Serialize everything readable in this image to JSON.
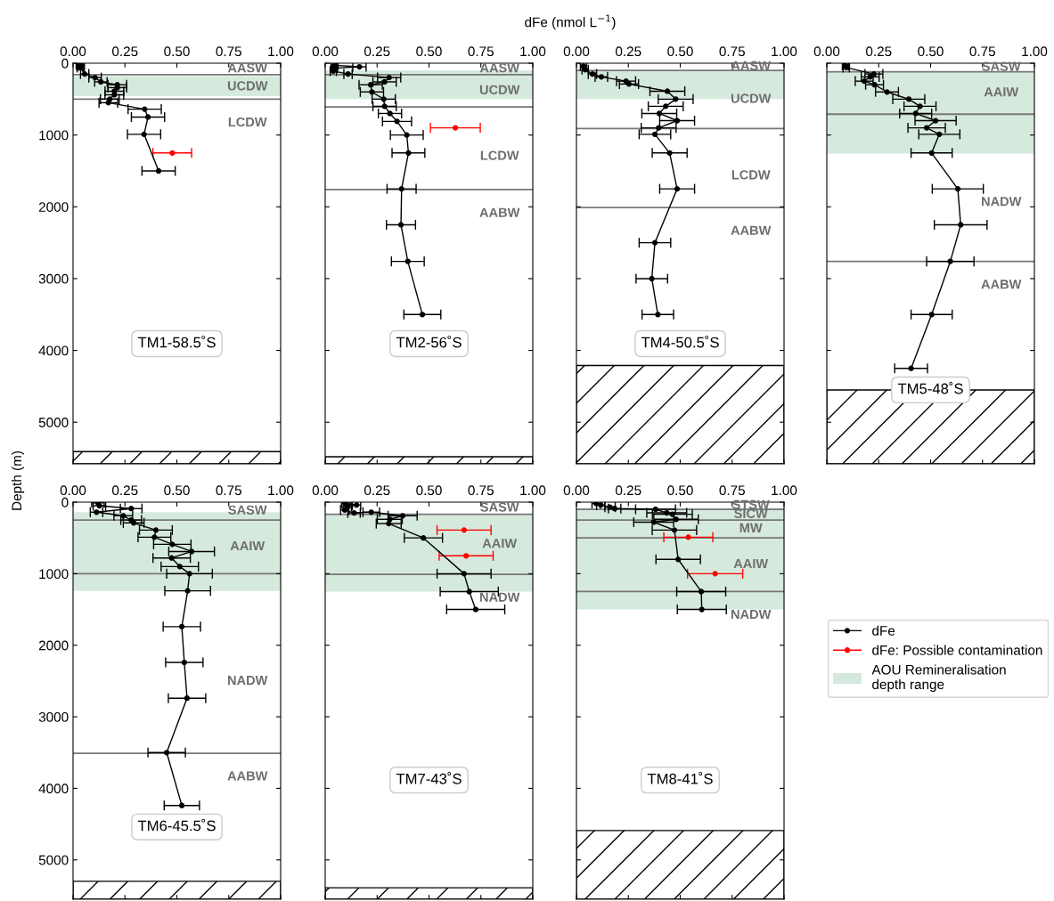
{
  "chart_data": [
    {
      "type": "line",
      "title": "TM1-58.5˚S",
      "marker": "circle",
      "grid": false,
      "xlim": [
        0,
        1
      ],
      "xticks": [
        {
          "value": 0,
          "label": "0.00"
        },
        {
          "value": 0.25,
          "label": "0.25"
        },
        {
          "value": 0.5,
          "label": "0.50"
        },
        {
          "value": 0.75,
          "label": "0.75"
        },
        {
          "value": 1,
          "label": "1.00"
        }
      ],
      "ylim": [
        5580,
        0
      ],
      "yticks": [
        0,
        1000,
        2000,
        3000,
        4000,
        5000
      ],
      "series": [
        {
          "type": "line",
          "color": "#000000",
          "x": [
            0.03,
            0.04,
            0.034,
            0.056,
            0.106,
            0.134,
            0.213,
            0.213,
            0.199,
            0.199,
            0.177,
            0.17,
            0.345,
            0.361,
            0.342,
            0.412
          ],
          "values": [
            20,
            40,
            60,
            150,
            200,
            260,
            300,
            340,
            390,
            440,
            500,
            550,
            640,
            750,
            990,
            1500
          ],
          "xerrors": [
            0.015,
            0.015,
            0.015,
            0.02,
            0.03,
            0.03,
            0.045,
            0.045,
            0.045,
            0.045,
            0.045,
            0.045,
            0.08,
            0.08,
            0.08,
            0.08
          ]
        },
        {
          "type": "scatter",
          "color": "#ff0000",
          "x": [
            0.478
          ],
          "values": [
            1250
          ],
          "xerrors": [
            0.093
          ]
        }
      ],
      "ref_lines": [
        {
          "axis": "y",
          "value": 160,
          "color": "#777777"
        },
        {
          "axis": "y",
          "value": 500,
          "color": "#777777"
        }
      ],
      "bands": [
        {
          "axis": "y",
          "from": 180,
          "to": 460,
          "color": "#96c8ab"
        },
        {
          "axis": "y",
          "from": 5410,
          "to": 5580
        }
      ],
      "annotations": [
        "AASW",
        "UCDW",
        "LCDW",
        {
          "text": "dFe (nmol L$^{−1}$)"
        },
        {
          "text": "Depth (m)"
        }
      ]
    },
    {
      "type": "line",
      "title": "TM2-56˚S",
      "marker": "circle",
      "grid": false,
      "tick_labels": "x",
      "xlim": [
        0,
        1
      ],
      "xticks": [
        {
          "value": 0,
          "label": "0.00"
        },
        {
          "value": 0.25,
          "label": "0.25"
        },
        {
          "value": 0.5,
          "label": "0.50"
        },
        {
          "value": 0.75,
          "label": "0.75"
        },
        {
          "value": 1,
          "label": "1.00"
        }
      ],
      "ylim": [
        5580,
        0
      ],
      "yticks": [
        0,
        1000,
        2000,
        3000,
        4000,
        5000
      ],
      "series": [
        {
          "type": "line",
          "color": "#000000",
          "x": [
            0.047,
            0.165,
            0.043,
            0.039,
            0.11,
            0.308,
            0.286,
            0.219,
            0.225,
            0.282,
            0.286,
            0.312,
            0.346,
            0.393,
            0.401,
            0.368,
            0.365,
            0.398,
            0.468
          ],
          "values": [
            30,
            50,
            70,
            110,
            150,
            200,
            260,
            300,
            400,
            500,
            600,
            700,
            810,
            1000,
            1250,
            1750,
            2250,
            2760,
            3500
          ],
          "xerrors": [
            0.015,
            0.032,
            0.015,
            0.015,
            0.02,
            0.056,
            0.056,
            0.056,
            0.056,
            0.056,
            0.056,
            0.056,
            0.07,
            0.079,
            0.079,
            0.07,
            0.07,
            0.079,
            0.089
          ]
        },
        {
          "type": "scatter",
          "color": "#ff0000",
          "x": [
            0.627
          ],
          "values": [
            900
          ],
          "xerrors": [
            0.12
          ]
        }
      ],
      "ref_lines": [
        {
          "axis": "y",
          "value": 160,
          "color": "#777777"
        },
        {
          "axis": "y",
          "value": 610,
          "color": "#777777"
        },
        {
          "axis": "y",
          "value": 1760,
          "color": "#777777"
        }
      ],
      "bands": [
        {
          "axis": "y",
          "from": 100,
          "to": 500,
          "color": "#96c8ab"
        },
        {
          "axis": "y",
          "from": 5480,
          "to": 5580
        }
      ],
      "annotations": [
        "AASW",
        "UCDW",
        "LCDW",
        "AABW"
      ]
    },
    {
      "type": "line",
      "title": "TM4-50.5˚S",
      "marker": "circle",
      "grid": false,
      "tick_labels": "x",
      "xlim": [
        0,
        1
      ],
      "xticks": [
        {
          "value": 0,
          "label": "0.00"
        },
        {
          "value": 0.25,
          "label": "0.25"
        },
        {
          "value": 0.5,
          "label": "0.50"
        },
        {
          "value": 0.75,
          "label": "0.75"
        },
        {
          "value": 1,
          "label": "1.00"
        }
      ],
      "ylim": [
        5580,
        0
      ],
      "yticks": [
        0,
        1000,
        2000,
        3000,
        4000,
        5000
      ],
      "series": [
        {
          "type": "line",
          "color": "#000000",
          "x": [
            0.034,
            0.042,
            0.077,
            0.12,
            0.239,
            0.253,
            0.438,
            0.478,
            0.43,
            0.399,
            0.485,
            0.396,
            0.378,
            0.449,
            0.485,
            0.378,
            0.363,
            0.392
          ],
          "values": [
            40,
            90,
            150,
            190,
            250,
            290,
            390,
            500,
            600,
            700,
            800,
            900,
            990,
            1250,
            1750,
            2500,
            3000,
            3500
          ],
          "xerrors": [
            0.015,
            0.015,
            0.02,
            0.03,
            0.046,
            0.046,
            0.084,
            0.084,
            0.084,
            0.084,
            0.084,
            0.084,
            0.076,
            0.084,
            0.084,
            0.076,
            0.076,
            0.076
          ]
        }
      ],
      "ref_lines": [
        {
          "axis": "y",
          "value": 100,
          "color": "#777777"
        },
        {
          "axis": "y",
          "value": 910,
          "color": "#777777"
        },
        {
          "axis": "y",
          "value": 2010,
          "color": "#777777"
        }
      ],
      "bands": [
        {
          "axis": "y",
          "from": 100,
          "to": 500,
          "color": "#96c8ab"
        },
        {
          "axis": "y",
          "from": 4210,
          "to": 5580
        }
      ],
      "annotations": [
        "AASW",
        "UCDW",
        "LCDW",
        "AABW"
      ]
    },
    {
      "type": "line",
      "title": "TM5-48˚S",
      "marker": "circle",
      "grid": false,
      "tick_labels": "x",
      "xlim": [
        0,
        1
      ],
      "xticks": [
        {
          "value": 0,
          "label": "0.00"
        },
        {
          "value": 0.25,
          "label": "0.25"
        },
        {
          "value": 0.5,
          "label": "0.50"
        },
        {
          "value": 0.75,
          "label": "0.75"
        },
        {
          "value": 1,
          "label": "1.00"
        }
      ],
      "ylim": [
        5580,
        0
      ],
      "yticks": [
        0,
        1000,
        2000,
        3000,
        4000,
        5000
      ],
      "series": [
        {
          "type": "line",
          "color": "#000000",
          "x": [
            0.09,
            0.094,
            0.227,
            0.209,
            0.18,
            0.23,
            0.29,
            0.395,
            0.449,
            0.428,
            0.524,
            0.481,
            0.542,
            0.505,
            0.631,
            0.645,
            0.595,
            0.505,
            0.406
          ],
          "values": [
            30,
            60,
            150,
            190,
            250,
            300,
            400,
            500,
            600,
            700,
            800,
            900,
            990,
            1250,
            1750,
            2250,
            2760,
            3500,
            4250
          ],
          "xerrors": [
            0.015,
            0.015,
            0.043,
            0.043,
            0.043,
            0.043,
            0.055,
            0.077,
            0.077,
            0.077,
            0.099,
            0.09,
            0.099,
            0.099,
            0.123,
            0.127,
            0.114,
            0.099,
            0.079
          ]
        }
      ],
      "ref_lines": [
        {
          "axis": "y",
          "value": 120,
          "color": "#777777"
        },
        {
          "axis": "y",
          "value": 710,
          "color": "#777777"
        },
        {
          "axis": "y",
          "value": 2760,
          "color": "#777777"
        }
      ],
      "bands": [
        {
          "axis": "y",
          "from": 120,
          "to": 1260,
          "color": "#96c8ab"
        },
        {
          "axis": "y",
          "from": 4550,
          "to": 5580
        }
      ],
      "annotations": [
        "SASW",
        "AAIW",
        "NADW",
        "AABW"
      ]
    },
    {
      "type": "line",
      "title": "TM6-45.5˚S",
      "marker": "circle",
      "grid": false,
      "xlim": [
        0,
        1
      ],
      "xticks": [
        {
          "value": 0,
          "label": "0.00"
        },
        {
          "value": 0.25,
          "label": "0.25"
        },
        {
          "value": 0.5,
          "label": "0.50"
        },
        {
          "value": 0.75,
          "label": "0.75"
        },
        {
          "value": 1,
          "label": "1.00"
        }
      ],
      "ylim": [
        5550,
        0
      ],
      "yticks": [
        0,
        1000,
        2000,
        3000,
        4000,
        5000
      ],
      "series": [
        {
          "type": "line",
          "color": "#000000",
          "x": [
            0.12,
            0.127,
            0.28,
            0.113,
            0.242,
            0.28,
            0.292,
            0.399,
            0.392,
            0.478,
            0.571,
            0.475,
            0.514,
            0.561,
            0.552,
            0.524,
            0.536,
            0.549,
            0.451,
            0.524
          ],
          "values": [
            10,
            50,
            90,
            140,
            190,
            250,
            290,
            390,
            490,
            590,
            690,
            780,
            900,
            1000,
            1240,
            1740,
            2240,
            2740,
            3500,
            4240
          ],
          "xerrors": [
            0.03,
            0.03,
            0.052,
            0.03,
            0.045,
            0.05,
            0.05,
            0.079,
            0.079,
            0.09,
            0.11,
            0.09,
            0.09,
            0.11,
            0.11,
            0.09,
            0.09,
            0.09,
            0.09,
            0.085
          ]
        }
      ],
      "ref_lines": [
        {
          "axis": "y",
          "value": 250,
          "color": "#777777"
        },
        {
          "axis": "y",
          "value": 1000,
          "color": "#777777"
        },
        {
          "axis": "y",
          "value": 3510,
          "color": "#777777"
        }
      ],
      "bands": [
        {
          "axis": "y",
          "from": 140,
          "to": 1240,
          "color": "#96c8ab"
        },
        {
          "axis": "y",
          "from": 5300,
          "to": 5550
        }
      ],
      "annotations": [
        "SASW",
        "AAIW",
        "NADW",
        "AABW"
      ]
    },
    {
      "type": "line",
      "title": "TM7-43˚S",
      "marker": "circle",
      "grid": false,
      "tick_labels": "x",
      "xlim": [
        0,
        1
      ],
      "xticks": [
        {
          "value": 0,
          "label": "0.00"
        },
        {
          "value": 0.25,
          "label": "0.25"
        },
        {
          "value": 0.5,
          "label": "0.50"
        },
        {
          "value": 0.75,
          "label": "0.75"
        },
        {
          "value": 1,
          "label": "1.00"
        }
      ],
      "ylim": [
        5550,
        0
      ],
      "yticks": [
        0,
        1000,
        2000,
        3000,
        4000,
        5000
      ],
      "series": [
        {
          "type": "line",
          "color": "#000000",
          "x": [
            0.099,
            0.151,
            0.106,
            0.094,
            0.139,
            0.222,
            0.373,
            0.311,
            0.306,
            0.473,
            0.669,
            0.694,
            0.725
          ],
          "values": [
            20,
            40,
            60,
            110,
            150,
            140,
            190,
            240,
            300,
            500,
            1000,
            1250,
            1500
          ],
          "xerrors": [
            0.02,
            0.02,
            0.02,
            0.02,
            0.03,
            0.04,
            0.07,
            0.06,
            0.06,
            0.092,
            0.13,
            0.14,
            0.14
          ]
        },
        {
          "type": "scatter",
          "color": "#ff0000",
          "x": [
            0.669,
            0.679
          ],
          "values": [
            390,
            750
          ],
          "xerrors": [
            0.13,
            0.13
          ]
        }
      ],
      "ref_lines": [
        {
          "axis": "y",
          "value": 170,
          "color": "#777777"
        },
        {
          "axis": "y",
          "value": 1010,
          "color": "#777777"
        }
      ],
      "bands": [
        {
          "axis": "y",
          "from": 170,
          "to": 1250,
          "color": "#96c8ab"
        },
        {
          "axis": "y",
          "from": 5390,
          "to": 5550
        }
      ],
      "annotations": [
        "SASW",
        "AAIW",
        "NADW"
      ]
    },
    {
      "type": "line",
      "title": "TM8-41˚S",
      "marker": "circle",
      "grid": false,
      "tick_labels": "x",
      "legend": "right",
      "xlim": [
        0,
        1
      ],
      "xticks": [
        {
          "value": 0,
          "label": "0.00"
        },
        {
          "value": 0.25,
          "label": "0.25"
        },
        {
          "value": 0.5,
          "label": "0.50"
        },
        {
          "value": 0.75,
          "label": "0.75"
        },
        {
          "value": 1,
          "label": "1.00"
        }
      ],
      "ylim": [
        5550,
        0
      ],
      "yticks": [
        0,
        1000,
        2000,
        3000,
        4000,
        5000
      ],
      "series": [
        {
          "type": "line",
          "name": "dFe",
          "color": "#000000",
          "x": [
            0.095,
            0.117,
            0.162,
            0.184,
            0.381,
            0.435,
            0.462,
            0.48,
            0.372,
            0.472,
            0.49,
            0.601,
            0.604
          ],
          "values": [
            20,
            40,
            70,
            90,
            100,
            150,
            170,
            240,
            280,
            390,
            800,
            1250,
            1500
          ],
          "xerrors": [
            0.02,
            0.02,
            0.025,
            0.03,
            0.096,
            0.096,
            0.096,
            0.107,
            0.096,
            0.107,
            0.107,
            0.118,
            0.118
          ]
        },
        {
          "type": "scatter",
          "name": "dFe: Possible contamination",
          "color": "#ff0000",
          "x": [
            0.539,
            0.668
          ],
          "values": [
            490,
            1000
          ],
          "xerrors": [
            0.118,
            0.133
          ]
        }
      ],
      "ref_lines": [
        {
          "axis": "y",
          "value": 100,
          "color": "#777777"
        },
        {
          "axis": "y",
          "value": 250,
          "color": "#777777"
        },
        {
          "axis": "y",
          "value": 500,
          "color": "#777777"
        },
        {
          "axis": "y",
          "value": 1250,
          "color": "#777777"
        }
      ],
      "bands": [
        {
          "axis": "y",
          "from": 80,
          "to": 1500,
          "color": "#96c8ab",
          "label": "AOU Remineralisation depth range"
        },
        {
          "axis": "y",
          "from": 4590,
          "to": 5550
        }
      ],
      "annotations": [
        "STSW",
        "SICW",
        "MW",
        "AAIW",
        "NADW"
      ]
    }
  ]
}
